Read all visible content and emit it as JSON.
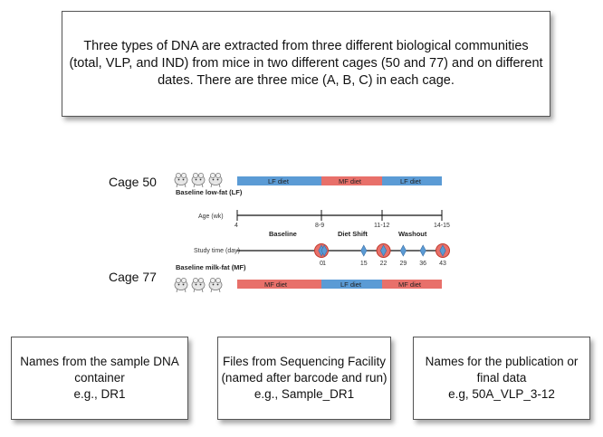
{
  "top_box": {
    "lines": [
      "Three types of DNA are extracted from three different biological communities",
      "(total, VLP, and IND) from mice in two different cages (50 and 77) and on different",
      "dates.   There are three mice (A, B, C) in each cage."
    ]
  },
  "cages": {
    "cage50": "Cage 50",
    "cage77": "Cage 77"
  },
  "timeline": {
    "baseline_lf": "Baseline low-fat (LF)",
    "baseline_mf": "Baseline milk-fat (MF)",
    "cage50_bar": [
      {
        "label": "LF diet",
        "color": "#5b9bd5"
      },
      {
        "label": "MF diet",
        "color": "#e8706a"
      },
      {
        "label": "LF diet",
        "color": "#5b9bd5"
      }
    ],
    "cage77_bar": [
      {
        "label": "MF diet",
        "color": "#e8706a"
      },
      {
        "label": "LF diet",
        "color": "#5b9bd5"
      },
      {
        "label": "MF diet",
        "color": "#e8706a"
      }
    ],
    "age_label": "Age (wk)",
    "age_ticks": [
      "4",
      "8-9",
      "11-12",
      "14-15"
    ],
    "phases": [
      "Baseline",
      "Diet Shift",
      "Washout"
    ],
    "study_label": "Study time (day)",
    "study_days": [
      {
        "day": "0",
        "circled": true
      },
      {
        "day": "1",
        "circled": false
      },
      {
        "day": "15",
        "circled": false
      },
      {
        "day": "22",
        "circled": true
      },
      {
        "day": "29",
        "circled": false
      },
      {
        "day": "36",
        "circled": false
      },
      {
        "day": "43",
        "circled": true
      }
    ]
  },
  "bottom_boxes": [
    {
      "lines": [
        "Names from the sample DNA",
        "container",
        "e.g., DR1"
      ]
    },
    {
      "lines": [
        "Files from Sequencing Facility",
        "(named after barcode and run)",
        "e.g., Sample_DR1"
      ]
    },
    {
      "lines": [
        "Names for the publication or",
        "final data",
        "e.g, 50A_VLP_3-12"
      ]
    }
  ]
}
